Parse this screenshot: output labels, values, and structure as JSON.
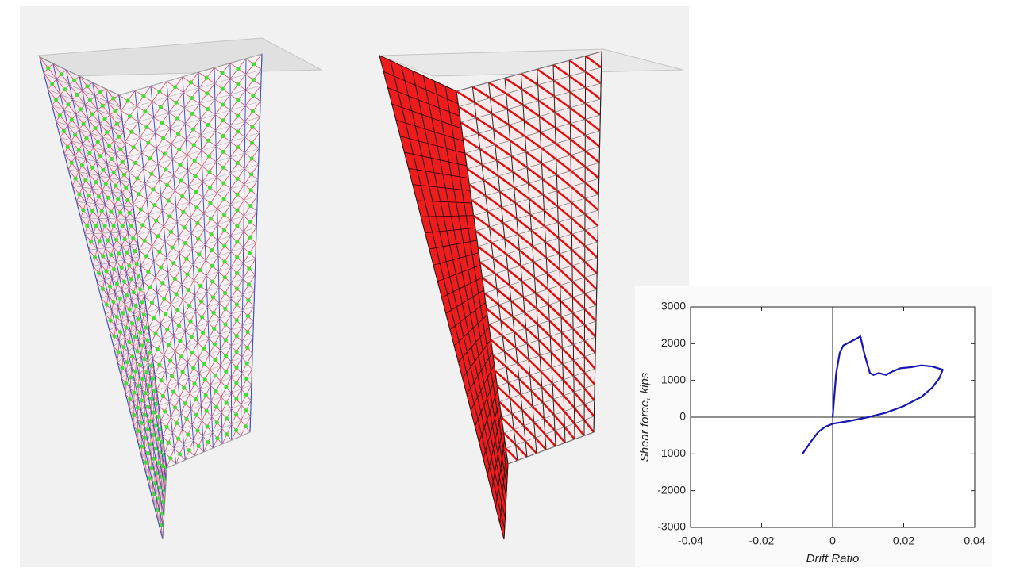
{
  "chart_data": {
    "type": "line",
    "xlabel": "Drift Ratio",
    "ylabel": "Shear force, kips",
    "xlim": [
      -0.04,
      0.04
    ],
    "ylim": [
      -3000,
      3000
    ],
    "xticks": [
      -0.04,
      -0.02,
      0,
      0.02,
      0.04
    ],
    "yticks": [
      -3000,
      -2000,
      -1000,
      0,
      1000,
      2000,
      3000
    ],
    "grid": false,
    "zero_lines": true,
    "series": [
      {
        "color": "#1717b0",
        "x": [
          0,
          0.0005,
          0.001,
          0.002,
          0.003,
          0.005,
          0.007,
          0.0078,
          0.009,
          0.0105,
          0.0115,
          0.013,
          0.015,
          0.017,
          0.019,
          0.022,
          0.025,
          0.028,
          0.031,
          0.03,
          0.028,
          0.025,
          0.02,
          0.015,
          0.01,
          0.005,
          0,
          -0.002,
          -0.004,
          -0.006,
          -0.0085
        ],
        "values": [
          0,
          600,
          1200,
          1750,
          1950,
          2050,
          2150,
          2200,
          1700,
          1200,
          1150,
          1200,
          1150,
          1250,
          1330,
          1360,
          1410,
          1380,
          1290,
          1050,
          800,
          550,
          300,
          120,
          0,
          -100,
          -180,
          -260,
          -400,
          -650,
          -1000
        ]
      }
    ]
  }
}
